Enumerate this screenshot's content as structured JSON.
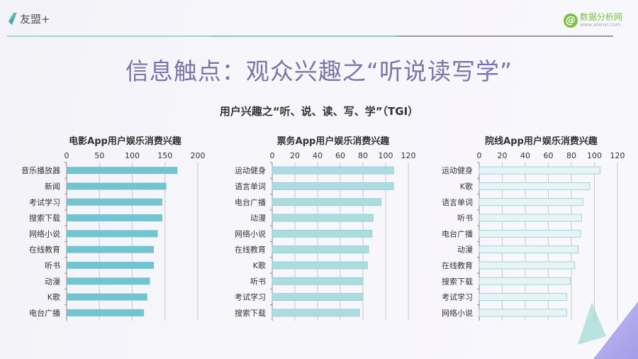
{
  "header": {
    "brand": "友盟+",
    "partner_name": "数据分析网",
    "partner_url": "www.afenxi.com"
  },
  "title": "信息触点：观众兴趣之“听说读写学”",
  "subtitle": "用户兴趣之“听、说、读、写、学”（TGI）",
  "chart_data": [
    {
      "type": "bar",
      "orientation": "horizontal",
      "title": "电影App用户娱乐消费兴趣",
      "categories": [
        "音乐播放器",
        "新闻",
        "考试学习",
        "搜索下载",
        "网络小说",
        "在线教育",
        "听书",
        "动漫",
        "K歌",
        "电台广播"
      ],
      "values": [
        169,
        152,
        146,
        146,
        139,
        133,
        133,
        127,
        123,
        118
      ],
      "xlim": [
        0,
        200
      ],
      "ticks": [
        0,
        50,
        100,
        150,
        200
      ],
      "grid": true,
      "color": "#72c4d0"
    },
    {
      "type": "bar",
      "orientation": "horizontal",
      "title": "票务App用户娱乐消费兴趣",
      "categories": [
        "运动健身",
        "语言单词",
        "电台广播",
        "动漫",
        "网络小说",
        "在线教育",
        "K歌",
        "听书",
        "考试学习",
        "搜索下载"
      ],
      "values": [
        107,
        107,
        96,
        89,
        88,
        85,
        84,
        80,
        80,
        77
      ],
      "xlim": [
        0,
        120
      ],
      "ticks": [
        0,
        20,
        40,
        60,
        80,
        100,
        120
      ],
      "grid": true,
      "color": "#a9dde2"
    },
    {
      "type": "bar",
      "orientation": "horizontal",
      "title": "院线App用户娱乐消费兴趣",
      "categories": [
        "运动健身",
        "K歌",
        "语言单词",
        "听书",
        "电台广播",
        "动漫",
        "在线教育",
        "搜索下载",
        "考试学习",
        "网络小说"
      ],
      "values": [
        105,
        96,
        90,
        89,
        88,
        86,
        83,
        79,
        76,
        76
      ],
      "xlim": [
        0,
        120
      ],
      "ticks": [
        0,
        20,
        40,
        60,
        80,
        100,
        120
      ],
      "grid": true,
      "color": "#e3f5f8"
    }
  ]
}
